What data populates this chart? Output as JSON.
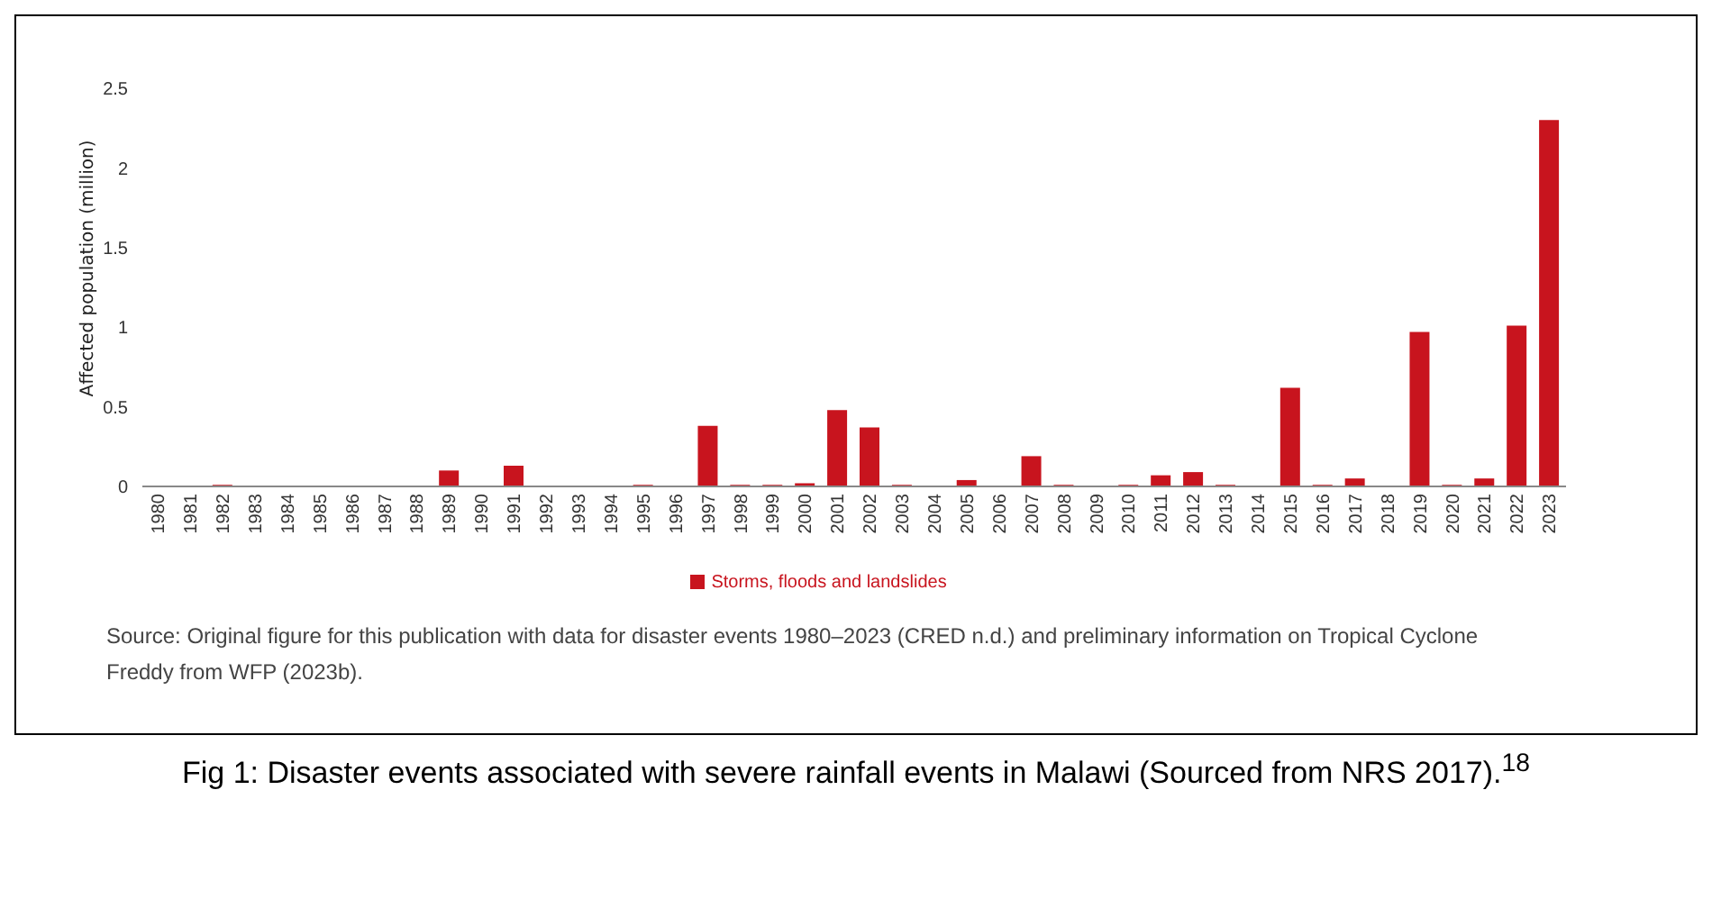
{
  "chart_data": {
    "type": "bar",
    "ylabel": "Affected population (million)",
    "categories": [
      "1980",
      "1981",
      "1982",
      "1983",
      "1984",
      "1985",
      "1986",
      "1987",
      "1988",
      "1989",
      "1990",
      "1991",
      "1992",
      "1993",
      "1994",
      "1995",
      "1996",
      "1997",
      "1998",
      "1999",
      "2000",
      "2001",
      "2002",
      "2003",
      "2004",
      "2005",
      "2006",
      "2007",
      "2008",
      "2009",
      "2010",
      "2011",
      "2012",
      "2013",
      "2014",
      "2015",
      "2016",
      "2017",
      "2018",
      "2019",
      "2020",
      "2021",
      "2022",
      "2023"
    ],
    "series": [
      {
        "name": "Storms, floods and landslides",
        "color": "#c8141e",
        "values": [
          0,
          0,
          0.01,
          0,
          0,
          0,
          0,
          0,
          0,
          0.1,
          0,
          0.13,
          0,
          0,
          0,
          0.01,
          0,
          0.38,
          0.01,
          0.01,
          0.02,
          0.48,
          0.37,
          0.01,
          0,
          0.04,
          0,
          0.19,
          0.01,
          0,
          0.01,
          0.07,
          0.09,
          0.01,
          0,
          0.62,
          0.01,
          0.05,
          0,
          0.97,
          0.01,
          0.05,
          1.01,
          2.3
        ]
      }
    ],
    "ylim": [
      0,
      2.5
    ],
    "yticks": [
      0,
      0.5,
      1,
      1.5,
      2,
      2.5
    ],
    "legend": "bottom",
    "annotations": [
      "Source: Original figure for this publication with data for disaster events 1980–2023 (CRED n.d.) and preliminary information on Tropical Cyclone Freddy from WFP (2023b).",
      "Fig 1: Disaster events associated with severe rainfall events in Malawi (Sourced from NRS 2017).$^{18}$"
    ]
  }
}
